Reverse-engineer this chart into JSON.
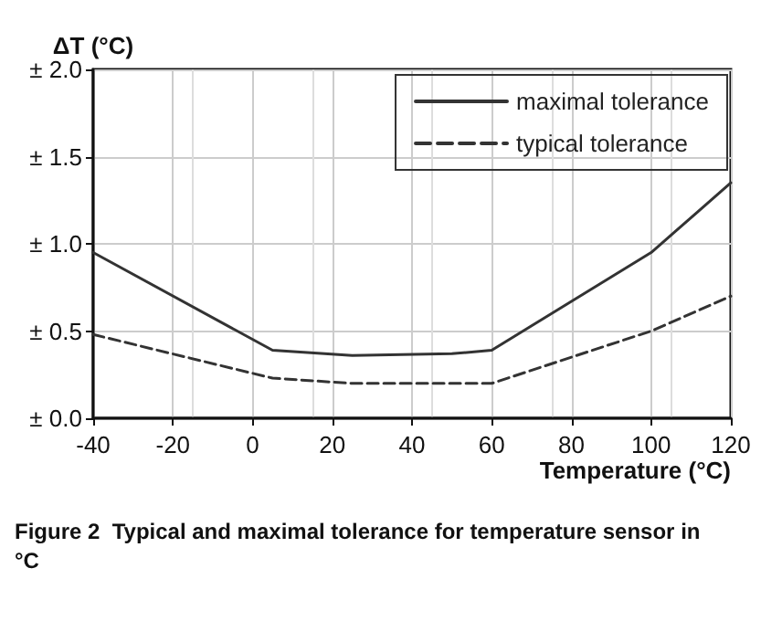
{
  "chart_data": {
    "type": "line",
    "xlabel": "Temperature (°C)",
    "ylabel": "ΔT (°C)",
    "annotations": [
      "Figure 2  Typical and maximal tolerance for temperature sensor in °C"
    ],
    "series": [
      {
        "name": "maximal tolerance",
        "color": "#333333",
        "line_style": "solid",
        "x": [
          -40,
          5,
          25,
          50,
          60,
          100,
          120
        ],
        "values": [
          0.95,
          0.39,
          0.36,
          0.37,
          0.39,
          0.95,
          1.35
        ]
      },
      {
        "name": "typical tolerance",
        "color": "#333333",
        "line_style": "dashed",
        "x": [
          -40,
          5,
          25,
          60,
          100,
          120
        ],
        "values": [
          0.48,
          0.23,
          0.2,
          0.2,
          0.5,
          0.7
        ]
      }
    ],
    "xlim": [
      -40,
      120
    ],
    "xticks": [
      -40,
      -20,
      0,
      20,
      40,
      60,
      80,
      100,
      120
    ],
    "ylim": [
      0,
      2
    ],
    "yticks": [
      {
        "value": 0,
        "label": "± 0.0"
      },
      {
        "value": 0.5,
        "label": "± 0.5"
      },
      {
        "value": 1,
        "label": "± 1.0"
      },
      {
        "value": 1.5,
        "label": "± 1.5"
      },
      {
        "value": 2,
        "label": "± 2.0"
      }
    ],
    "grid": true,
    "legend": "top right",
    "marker": "none"
  }
}
